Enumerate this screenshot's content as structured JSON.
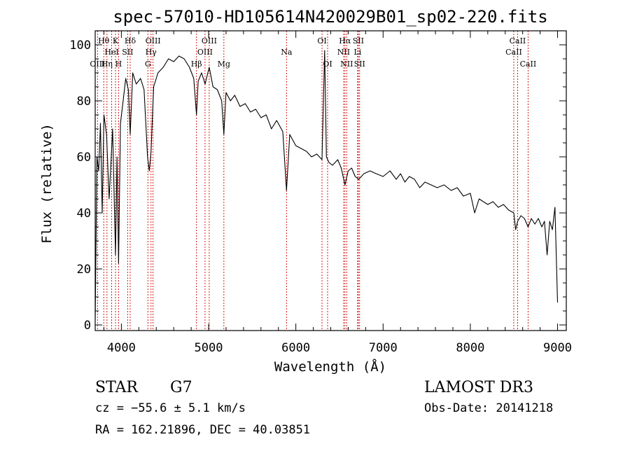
{
  "chart_data": {
    "type": "line",
    "title": "spec-57010-HD105614N420029B01_sp02-220.fits",
    "xlabel": "Wavelength (Å)",
    "ylabel": "Flux (relative)",
    "xlim": [
      3700,
      9100
    ],
    "ylim": [
      -2,
      105
    ],
    "xticks": [
      4000,
      5000,
      6000,
      7000,
      8000,
      9000
    ],
    "yticks": [
      0,
      20,
      40,
      60,
      80,
      100
    ],
    "grid": false,
    "series": [
      {
        "name": "spectrum",
        "color": "#000000",
        "x": [
          3700,
          3720,
          3740,
          3760,
          3780,
          3800,
          3830,
          3860,
          3900,
          3933,
          3950,
          3968,
          3990,
          4020,
          4050,
          4080,
          4101,
          4130,
          4170,
          4220,
          4260,
          4300,
          4320,
          4340,
          4370,
          4420,
          4480,
          4540,
          4600,
          4660,
          4720,
          4780,
          4830,
          4861,
          4880,
          4920,
          4960,
          5007,
          5050,
          5100,
          5150,
          5175,
          5200,
          5250,
          5300,
          5360,
          5420,
          5480,
          5540,
          5600,
          5660,
          5720,
          5780,
          5850,
          5893,
          5930,
          6000,
          6060,
          6120,
          6180,
          6240,
          6300,
          6330,
          6350,
          6380,
          6420,
          6480,
          6520,
          6563,
          6600,
          6640,
          6680,
          6720,
          6780,
          6850,
          6920,
          7000,
          7080,
          7150,
          7200,
          7250,
          7300,
          7360,
          7420,
          7480,
          7550,
          7620,
          7700,
          7780,
          7850,
          7920,
          8000,
          8050,
          8100,
          8150,
          8200,
          8260,
          8320,
          8380,
          8440,
          8498,
          8520,
          8542,
          8580,
          8620,
          8662,
          8700,
          8740,
          8780,
          8820,
          8850,
          8880,
          8910,
          8940,
          8970,
          9000
        ],
        "y": [
          2,
          60,
          55,
          72,
          40,
          75,
          68,
          45,
          70,
          25,
          60,
          22,
          72,
          80,
          88,
          84,
          68,
          90,
          86,
          88,
          84,
          60,
          55,
          62,
          85,
          90,
          92,
          95,
          94,
          96,
          95,
          92,
          88,
          75,
          87,
          90,
          86,
          92,
          85,
          84,
          80,
          68,
          83,
          80,
          82,
          78,
          79,
          76,
          77,
          74,
          75,
          70,
          73,
          69,
          48,
          68,
          64,
          63,
          62,
          60,
          61,
          59,
          98,
          60,
          58,
          57,
          59,
          56,
          50,
          55,
          56,
          53,
          52,
          54,
          55,
          54,
          53,
          55,
          52,
          54,
          51,
          53,
          52,
          49,
          51,
          50,
          49,
          50,
          48,
          49,
          46,
          47,
          40,
          45,
          44,
          43,
          44,
          42,
          43,
          41,
          40,
          34,
          37,
          39,
          38,
          35,
          38,
          36,
          38,
          35,
          37,
          25,
          37,
          34,
          42,
          8
        ]
      }
    ],
    "annotations": [
      {
        "label": "Hθ",
        "x": 3798,
        "row": 1
      },
      {
        "label": "OIII",
        "x": 3727,
        "row": 3
      },
      {
        "label": "Hη",
        "x": 3835,
        "row": 3
      },
      {
        "label": "HeI",
        "x": 3889,
        "row": 2
      },
      {
        "label": "K",
        "x": 3933,
        "row": 1
      },
      {
        "label": "H",
        "x": 3968,
        "row": 3
      },
      {
        "label": "Hδ",
        "x": 4101,
        "row": 1
      },
      {
        "label": "SII",
        "x": 4072,
        "row": 2
      },
      {
        "label": "OIII",
        "x": 4363,
        "row": 1
      },
      {
        "label": "Hγ",
        "x": 4340,
        "row": 2
      },
      {
        "label": "G",
        "x": 4304,
        "row": 3
      },
      {
        "label": "OIII",
        "x": 4959,
        "row": 2
      },
      {
        "label": "OIII",
        "x": 5007,
        "row": 1
      },
      {
        "label": "Hβ",
        "x": 4861,
        "row": 3
      },
      {
        "label": "Mg",
        "x": 5175,
        "row": 3
      },
      {
        "label": "Na",
        "x": 5893,
        "row": 2
      },
      {
        "label": "OI",
        "x": 6300,
        "row": 1
      },
      {
        "label": "OI",
        "x": 6364,
        "row": 3
      },
      {
        "label": "Hα",
        "x": 6563,
        "row": 1
      },
      {
        "label": "SII",
        "x": 6716,
        "row": 1
      },
      {
        "label": "NII",
        "x": 6548,
        "row": 2
      },
      {
        "label": "Li",
        "x": 6708,
        "row": 2
      },
      {
        "label": "NII",
        "x": 6583,
        "row": 3
      },
      {
        "label": "SII",
        "x": 6731,
        "row": 3
      },
      {
        "label": "CaII",
        "x": 8542,
        "row": 1
      },
      {
        "label": "CaII",
        "x": 8498,
        "row": 2
      },
      {
        "label": "CaII",
        "x": 8662,
        "row": 3
      }
    ]
  },
  "info": {
    "object_class": "STAR",
    "subclass": "G7",
    "cz": "cz = −55.6 ± 5.1 km/s",
    "coords": "RA = 162.21896, DEC =  40.03851",
    "survey": "LAMOST DR3",
    "obs_date": "Obs-Date: 20141218"
  }
}
